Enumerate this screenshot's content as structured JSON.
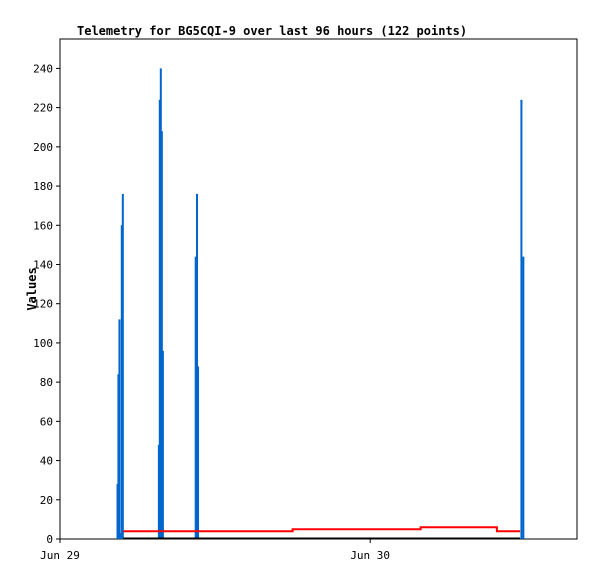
{
  "chart_data": {
    "type": "bar",
    "title": "Telemetry for BG5CQI-9 over last 96 hours (122 points)",
    "xlabel": "",
    "ylabel": "Values",
    "x_axis_kind": "time",
    "x_ticks": [
      {
        "label": "Jun 29",
        "t": 0
      },
      {
        "label": "Jun 30",
        "t": 24
      }
    ],
    "xlim": [
      0,
      40
    ],
    "ylim": [
      0,
      255
    ],
    "y_ticks": [
      0,
      20,
      40,
      60,
      80,
      100,
      120,
      140,
      160,
      180,
      200,
      220,
      240
    ],
    "grid": false,
    "colors": {
      "bars": "#0066cc",
      "line": "#ff0000",
      "baseline": "#000000",
      "frame": "#000000"
    },
    "series": [
      {
        "type": "bar",
        "points": [
          {
            "t": 4.45,
            "v": 28
          },
          {
            "t": 4.52,
            "v": 84
          },
          {
            "t": 4.6,
            "v": 112
          },
          {
            "t": 4.68,
            "v": 3
          },
          {
            "t": 4.78,
            "v": 160
          },
          {
            "t": 4.86,
            "v": 176
          },
          {
            "t": 7.65,
            "v": 48
          },
          {
            "t": 7.72,
            "v": 224
          },
          {
            "t": 7.8,
            "v": 240
          },
          {
            "t": 7.88,
            "v": 208
          },
          {
            "t": 7.96,
            "v": 96
          },
          {
            "t": 10.5,
            "v": 144
          },
          {
            "t": 10.6,
            "v": 176
          },
          {
            "t": 10.68,
            "v": 88
          },
          {
            "t": 35.7,
            "v": 224
          },
          {
            "t": 35.85,
            "v": 144
          }
        ]
      },
      {
        "type": "line",
        "points": [
          {
            "t": 4.9,
            "v": 4
          },
          {
            "t": 18.0,
            "v": 4
          },
          {
            "t": 18.0,
            "v": 5
          },
          {
            "t": 27.9,
            "v": 5
          },
          {
            "t": 27.9,
            "v": 6
          },
          {
            "t": 33.8,
            "v": 6
          },
          {
            "t": 33.8,
            "v": 4
          },
          {
            "t": 35.6,
            "v": 4
          }
        ]
      },
      {
        "type": "line",
        "points": [
          {
            "t": 4.9,
            "v": 0.4
          },
          {
            "t": 35.6,
            "v": 0.4
          }
        ]
      }
    ]
  }
}
